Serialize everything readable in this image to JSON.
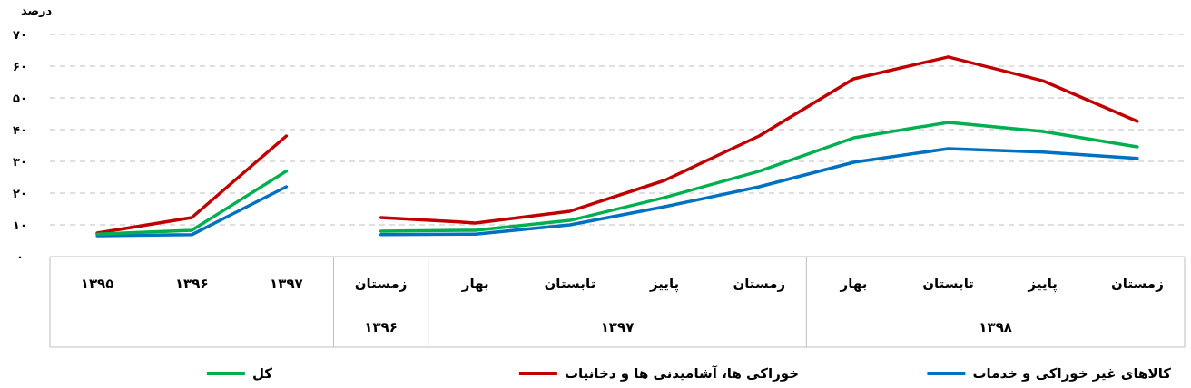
{
  "chart_data": {
    "type": "line",
    "ylabel": "درصد",
    "categories": [
      "۱۳۹۵",
      "۱۳۹۶",
      "۱۳۹۷",
      "زمستان",
      "بهار",
      "تابستان",
      "پاییز",
      "زمستان",
      "بهار",
      "تابستان",
      "پاییز",
      "زمستان"
    ],
    "annotations": [
      "۱۳۹۶",
      "۱۳۹۷",
      "۱۳۹۸"
    ],
    "ylim": [
      0,
      70
    ],
    "yticks": [
      {
        "value": 0,
        "label": "۰"
      },
      {
        "value": 10,
        "label": "۱۰"
      },
      {
        "value": 20,
        "label": "۲۰"
      },
      {
        "value": 30,
        "label": "۳۰"
      },
      {
        "value": 40,
        "label": "۴۰"
      },
      {
        "value": 50,
        "label": "۵۰"
      },
      {
        "value": 60,
        "label": "۶۰"
      },
      {
        "value": 70,
        "label": "۷۰"
      }
    ],
    "grid": "y",
    "legend": "bottom",
    "marker": "none",
    "line_style": "solid",
    "series": [
      {
        "name": "کالاهای غیر خوراکی و خدمات",
        "color": "#0070c0",
        "values": [
          null,
          null,
          null,
          6.9,
          7.1,
          10,
          15.7,
          22,
          29.7,
          34,
          32.9,
          30.9
        ]
      },
      {
        "name": "خوراکی ها، آشامیدنی ها و دخانیات",
        "color": "#c00000",
        "values": [
          null,
          null,
          null,
          12.3,
          10.6,
          14.3,
          24,
          38,
          56,
          62.9,
          55.4,
          42.6
        ]
      },
      {
        "name": "کل",
        "color": "#00b050",
        "values": [
          null,
          null,
          null,
          8,
          8.3,
          11.4,
          18.6,
          26.9,
          37.4,
          42.3,
          39.4,
          34.6
        ]
      },
      {
        "color": "#0070c0",
        "values": [
          6.6,
          6.9,
          22,
          null,
          null,
          null,
          null,
          null,
          null,
          null,
          null,
          null
        ]
      },
      {
        "color": "#c00000",
        "values": [
          7.4,
          12.3,
          38,
          null,
          null,
          null,
          null,
          null,
          null,
          null,
          null,
          null
        ]
      },
      {
        "color": "#00b050",
        "values": [
          7.1,
          8.3,
          26.9,
          null,
          null,
          null,
          null,
          null,
          null,
          null,
          null,
          null
        ]
      }
    ]
  }
}
